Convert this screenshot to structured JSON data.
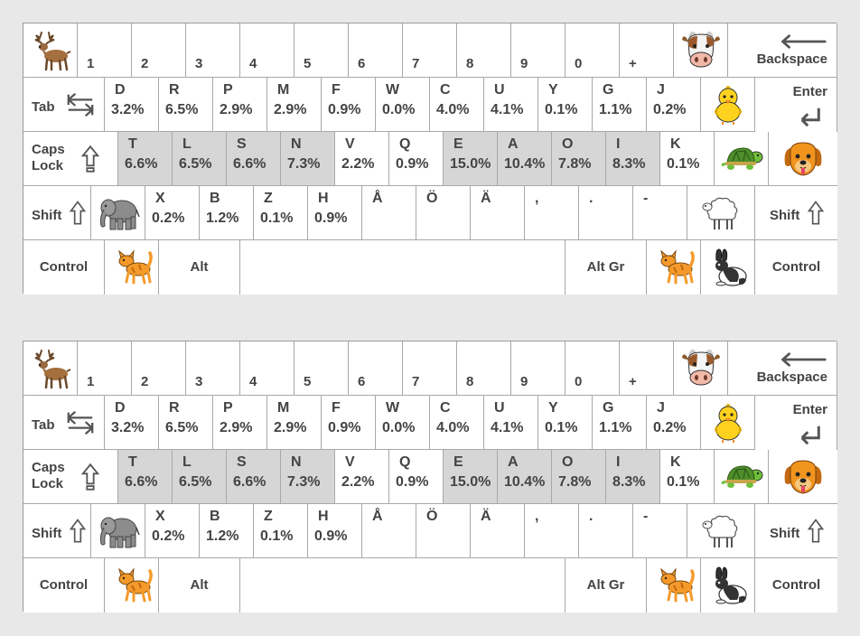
{
  "keyboards": [
    {
      "number_row": {
        "digits": [
          "1",
          "2",
          "3",
          "4",
          "5",
          "6",
          "7",
          "8",
          "9",
          "0",
          "+"
        ],
        "backspace_label": "Backspace",
        "deer_emoji": "deer",
        "cow_emoji": "cow-face"
      },
      "top_row": {
        "tab_label": "Tab",
        "enter_label": "Enter",
        "chick_emoji": "baby-chick",
        "keys": [
          {
            "letter": "D",
            "pct": "3.2%"
          },
          {
            "letter": "R",
            "pct": "6.5%"
          },
          {
            "letter": "P",
            "pct": "2.9%"
          },
          {
            "letter": "M",
            "pct": "2.9%"
          },
          {
            "letter": "F",
            "pct": "0.9%"
          },
          {
            "letter": "W",
            "pct": "0.0%"
          },
          {
            "letter": "C",
            "pct": "4.0%"
          },
          {
            "letter": "U",
            "pct": "4.1%"
          },
          {
            "letter": "Y",
            "pct": "0.1%"
          },
          {
            "letter": "G",
            "pct": "1.1%"
          },
          {
            "letter": "J",
            "pct": "0.2%"
          }
        ]
      },
      "home_row": {
        "caps_label_1": "Caps",
        "caps_label_2": "Lock",
        "turtle_emoji": "turtle",
        "dog_emoji": "dog-face",
        "keys": [
          {
            "letter": "T",
            "pct": "6.6%"
          },
          {
            "letter": "L",
            "pct": "6.5%"
          },
          {
            "letter": "S",
            "pct": "6.6%"
          },
          {
            "letter": "N",
            "pct": "7.3%"
          },
          {
            "letter": "V",
            "pct": "2.2%"
          },
          {
            "letter": "Q",
            "pct": "0.9%"
          },
          {
            "letter": "E",
            "pct": "15.0%"
          },
          {
            "letter": "A",
            "pct": "10.4%"
          },
          {
            "letter": "O",
            "pct": "7.8%"
          },
          {
            "letter": "I",
            "pct": "8.3%"
          },
          {
            "letter": "K",
            "pct": "0.1%"
          }
        ]
      },
      "bottom_row": {
        "shift_label": "Shift",
        "elephant_emoji": "elephant",
        "sheep_emoji": "sheep",
        "keys": [
          {
            "letter": "X",
            "pct": "0.2%"
          },
          {
            "letter": "B",
            "pct": "1.2%"
          },
          {
            "letter": "Z",
            "pct": "0.1%"
          },
          {
            "letter": "H",
            "pct": "0.9%"
          },
          {
            "letter": "Å",
            "pct": ""
          },
          {
            "letter": "Ö",
            "pct": ""
          },
          {
            "letter": "Ä",
            "pct": ""
          },
          {
            "letter": ",",
            "pct": ""
          },
          {
            "letter": ".",
            "pct": ""
          },
          {
            "letter": "-",
            "pct": ""
          }
        ]
      },
      "space_row": {
        "control_label": "Control",
        "alt_label": "Alt",
        "altgr_label": "Alt Gr",
        "cat_emoji": "cat",
        "rabbit_emoji": "rabbit"
      }
    },
    {
      "number_row": {
        "digits": [
          "1",
          "2",
          "3",
          "4",
          "5",
          "6",
          "7",
          "8",
          "9",
          "0",
          "+"
        ],
        "backspace_label": "Backspace",
        "deer_emoji": "deer",
        "cow_emoji": "cow-face"
      },
      "top_row": {
        "tab_label": "Tab",
        "enter_label": "Enter",
        "chick_emoji": "baby-chick",
        "keys": [
          {
            "letter": "D",
            "pct": "3.2%"
          },
          {
            "letter": "R",
            "pct": "6.5%"
          },
          {
            "letter": "P",
            "pct": "2.9%"
          },
          {
            "letter": "M",
            "pct": "2.9%"
          },
          {
            "letter": "F",
            "pct": "0.9%"
          },
          {
            "letter": "W",
            "pct": "0.0%"
          },
          {
            "letter": "C",
            "pct": "4.0%"
          },
          {
            "letter": "U",
            "pct": "4.1%"
          },
          {
            "letter": "Y",
            "pct": "0.1%"
          },
          {
            "letter": "G",
            "pct": "1.1%"
          },
          {
            "letter": "J",
            "pct": "0.2%"
          }
        ]
      },
      "home_row": {
        "caps_label_1": "Caps",
        "caps_label_2": "Lock",
        "turtle_emoji": "turtle",
        "dog_emoji": "dog-face",
        "keys": [
          {
            "letter": "T",
            "pct": "6.6%"
          },
          {
            "letter": "L",
            "pct": "6.5%"
          },
          {
            "letter": "S",
            "pct": "6.6%"
          },
          {
            "letter": "N",
            "pct": "7.3%"
          },
          {
            "letter": "V",
            "pct": "2.2%"
          },
          {
            "letter": "Q",
            "pct": "0.9%"
          },
          {
            "letter": "E",
            "pct": "15.0%"
          },
          {
            "letter": "A",
            "pct": "10.4%"
          },
          {
            "letter": "O",
            "pct": "7.8%"
          },
          {
            "letter": "I",
            "pct": "8.3%"
          },
          {
            "letter": "K",
            "pct": "0.1%"
          }
        ]
      },
      "bottom_row": {
        "shift_label": "Shift",
        "elephant_emoji": "elephant",
        "sheep_emoji": "sheep",
        "keys": [
          {
            "letter": "X",
            "pct": "0.2%"
          },
          {
            "letter": "B",
            "pct": "1.2%"
          },
          {
            "letter": "Z",
            "pct": "0.1%"
          },
          {
            "letter": "H",
            "pct": "0.9%"
          },
          {
            "letter": "Å",
            "pct": ""
          },
          {
            "letter": "Ö",
            "pct": ""
          },
          {
            "letter": "Ä",
            "pct": ""
          },
          {
            "letter": ",",
            "pct": ""
          },
          {
            "letter": ".",
            "pct": ""
          },
          {
            "letter": "-",
            "pct": ""
          }
        ]
      },
      "space_row": {
        "control_label": "Control",
        "alt_label": "Alt",
        "altgr_label": "Alt Gr",
        "cat_emoji": "cat",
        "rabbit_emoji": "rabbit"
      }
    }
  ]
}
